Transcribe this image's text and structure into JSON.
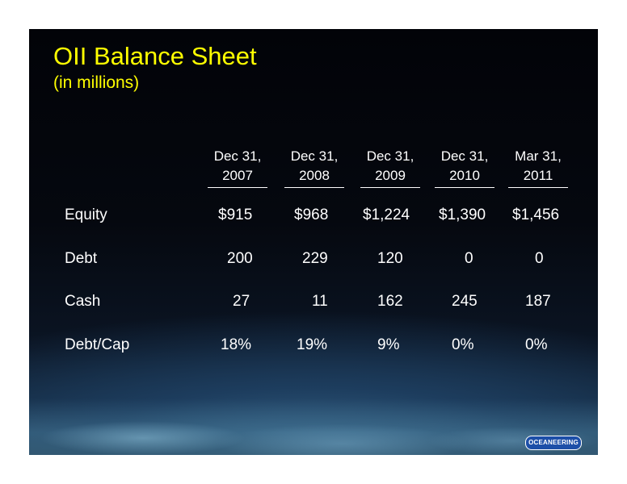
{
  "title": "OII Balance Sheet",
  "subtitle": "(in millions)",
  "columns": [
    {
      "line1": "Dec 31,",
      "line2": "2007"
    },
    {
      "line1": "Dec 31,",
      "line2": "2008"
    },
    {
      "line1": "Dec 31,",
      "line2": "2009"
    },
    {
      "line1": "Dec 31,",
      "line2": "2010"
    },
    {
      "line1": "Mar 31,",
      "line2": "2011"
    }
  ],
  "rows": [
    {
      "label": "Equity",
      "values": [
        "$915",
        "$968",
        "$1,224",
        "$1,390",
        "$1,456"
      ]
    },
    {
      "label": "Debt",
      "values": [
        "200",
        "229",
        "120",
        "0",
        "0"
      ]
    },
    {
      "label": "Cash",
      "values": [
        "27",
        "11",
        "162",
        "245",
        "187"
      ]
    },
    {
      "label": "Debt/Cap",
      "values": [
        "18%",
        "19%",
        "9%",
        "0%",
        "0%"
      ]
    }
  ],
  "logo": "OCEANEERING",
  "colors": {
    "title": "#ffff00",
    "text": "#ffffff",
    "logo_blue": "#1d4fa8"
  }
}
